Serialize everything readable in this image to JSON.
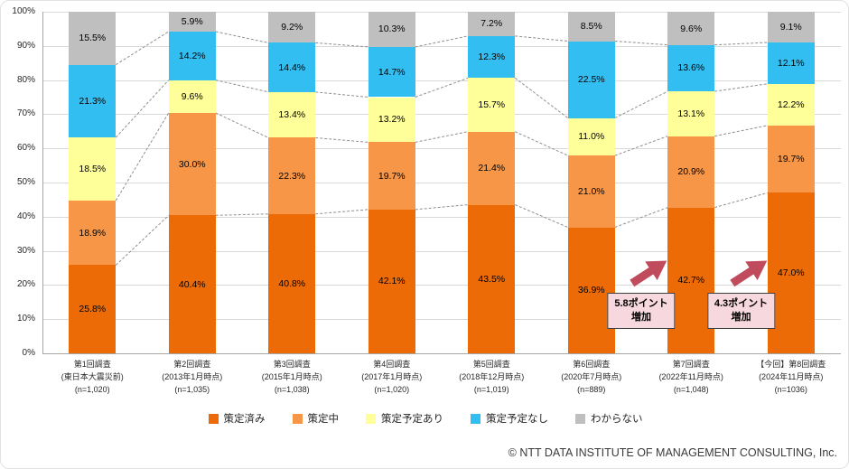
{
  "chart_data": {
    "type": "bar",
    "variant": "stacked-100-percent",
    "title": "",
    "xlabel": "",
    "ylabel": "",
    "ylim": [
      0,
      100
    ],
    "ytick_step": 10,
    "ytick_suffix": "%",
    "yticks": [
      "0%",
      "10%",
      "20%",
      "30%",
      "40%",
      "50%",
      "60%",
      "70%",
      "80%",
      "90%",
      "100%"
    ],
    "grid": true,
    "legend_position": "bottom",
    "categories": [
      {
        "lines": [
          "第1回調査",
          "(東日本大震災前)",
          "(n=1,020)"
        ]
      },
      {
        "lines": [
          "第2回調査",
          "(2013年1月時点)",
          "(n=1,035)"
        ]
      },
      {
        "lines": [
          "第3回調査",
          "(2015年1月時点)",
          "(n=1,038)"
        ]
      },
      {
        "lines": [
          "第4回調査",
          "(2017年1月時点)",
          "(n=1,020)"
        ]
      },
      {
        "lines": [
          "第5回調査",
          "(2018年12月時点)",
          "(n=1,019)"
        ]
      },
      {
        "lines": [
          "第6回調査",
          "(2020年7月時点)",
          "(n=889)"
        ]
      },
      {
        "lines": [
          "第7回調査",
          "(2022年11月時点)",
          "(n=1,048)"
        ]
      },
      {
        "lines": [
          "【今回】第8回調査",
          "(2024年11月時点)",
          "(n=1036)"
        ]
      }
    ],
    "series": [
      {
        "name": "策定済み",
        "color": "#ec6b06",
        "values": [
          25.8,
          40.4,
          40.8,
          42.1,
          43.5,
          36.9,
          42.7,
          47.0
        ]
      },
      {
        "name": "策定中",
        "color": "#f79646",
        "values": [
          18.9,
          30.0,
          22.3,
          19.7,
          21.4,
          21.0,
          20.9,
          19.7
        ]
      },
      {
        "name": "策定予定あり",
        "color": "#ffff99",
        "values": [
          18.5,
          9.6,
          13.4,
          13.2,
          15.7,
          11.0,
          13.1,
          12.2
        ]
      },
      {
        "name": "策定予定なし",
        "color": "#33bef2",
        "values": [
          21.3,
          14.2,
          14.4,
          14.7,
          12.3,
          22.5,
          13.6,
          12.1
        ]
      },
      {
        "name": "わからない",
        "color": "#bfbfbf",
        "values": [
          15.5,
          5.9,
          9.2,
          10.3,
          7.2,
          8.5,
          9.6,
          9.1
        ]
      }
    ],
    "annotations": [
      {
        "lines": [
          "5.8ポイント",
          "増加"
        ],
        "between_categories": [
          5,
          6
        ]
      },
      {
        "lines": [
          "4.3ポイント",
          "増加"
        ],
        "between_categories": [
          6,
          7
        ]
      }
    ],
    "colors": {
      "gridline": "#d9d9d9",
      "axis": "#a6a6a6",
      "connector": "#8f8f8f",
      "annotation_arrow": "#bf4b5c",
      "annotation_box_bg": "#f6d8de",
      "annotation_box_border": "#3f3f3f",
      "label_text": "#000000"
    }
  },
  "footer": {
    "copyright": "© NTT DATA INSTITUTE OF MANAGEMENT CONSULTING, Inc."
  }
}
